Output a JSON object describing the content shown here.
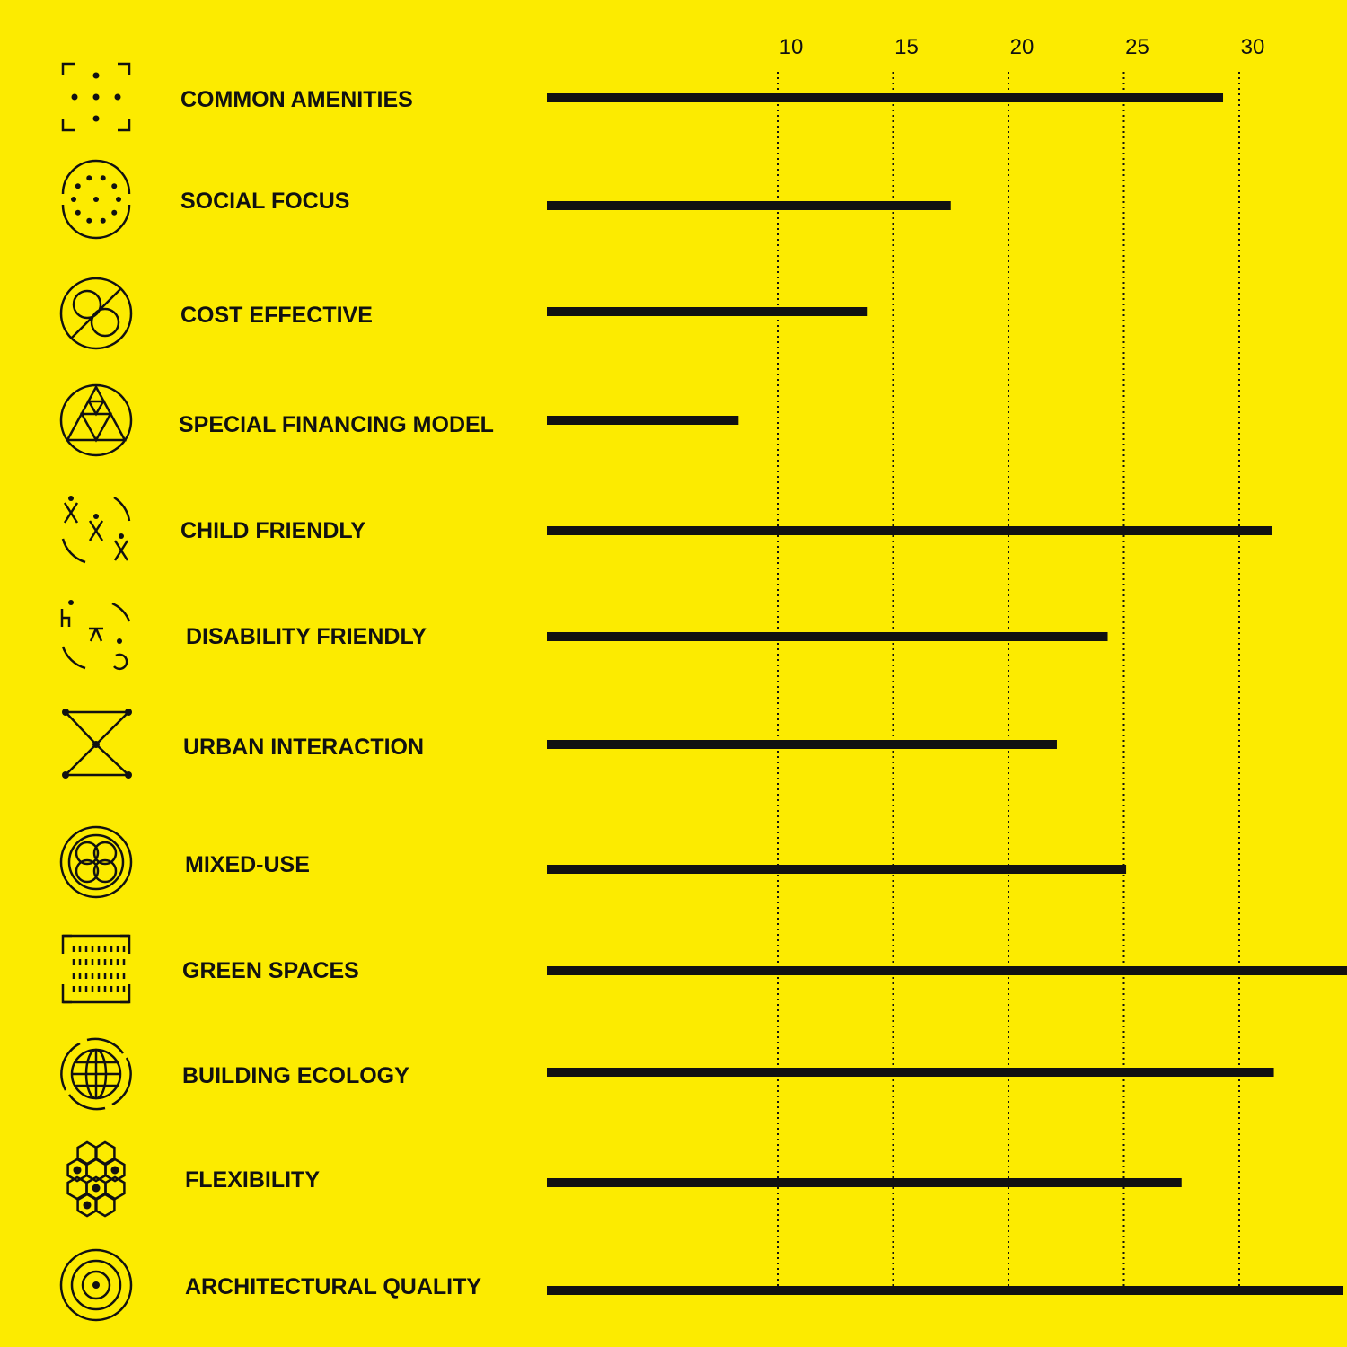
{
  "chart_data": {
    "type": "bar",
    "orientation": "horizontal",
    "title": "",
    "xlabel": "",
    "ylabel": "",
    "xlim": [
      0,
      35
    ],
    "ticks": [
      10,
      15,
      20,
      25,
      30
    ],
    "grid": "dotted vertical lines at ticks",
    "bar_color": "#111111",
    "background": "#FCEB00",
    "categories": [
      {
        "label": "COMMON AMENITIES",
        "icon": "amenities-dots-icon",
        "value": 29.3
      },
      {
        "label": "SOCIAL FOCUS",
        "icon": "social-circle-icon",
        "value": 17.5
      },
      {
        "label": "COST EFFECTIVE",
        "icon": "cost-circle-icon",
        "value": 13.9
      },
      {
        "label": "SPECIAL FINANCING MODEL",
        "icon": "financing-triangle-icon",
        "value": 8.3
      },
      {
        "label": "CHILD FRIENDLY",
        "icon": "child-figures-icon",
        "value": 31.4
      },
      {
        "label": "DISABILITY FRIENDLY",
        "icon": "disability-figures-icon",
        "value": 24.3
      },
      {
        "label": "URBAN INTERACTION",
        "icon": "hourglass-network-icon",
        "value": 22.1
      },
      {
        "label": "MIXED-USE",
        "icon": "overlapping-circles-icon",
        "value": 25.1
      },
      {
        "label": "GREEN SPACES",
        "icon": "grass-frame-icon",
        "value": 35.0
      },
      {
        "label": "BUILDING ECOLOGY",
        "icon": "globe-icon",
        "value": 31.5
      },
      {
        "label": "FLEXIBILITY",
        "icon": "hexagon-cluster-icon",
        "value": 27.5
      },
      {
        "label": "ARCHITECTURAL QUALITY",
        "icon": "concentric-circles-icon",
        "value": 34.5
      }
    ]
  }
}
